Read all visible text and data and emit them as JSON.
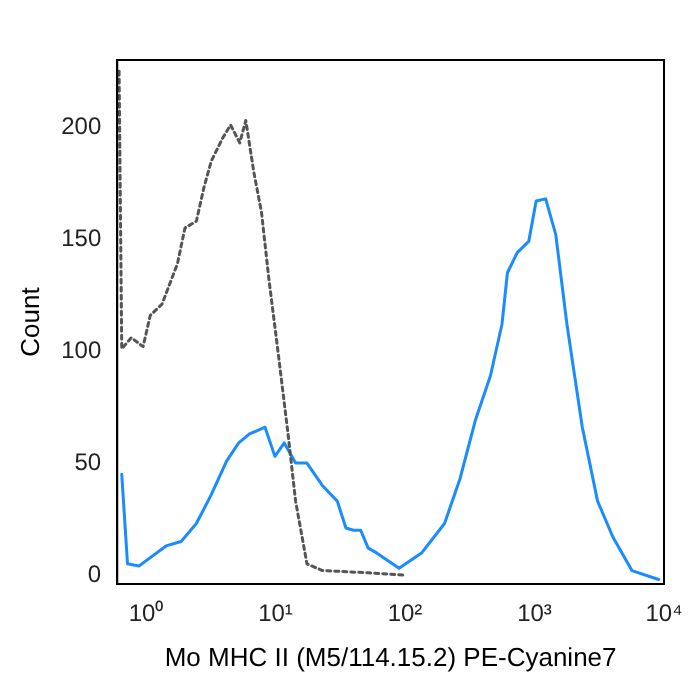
{
  "chart_data": {
    "type": "line",
    "xlabel": "Mo MHC II (M5/114.15.2) PE-Cyanine7",
    "ylabel": "Count",
    "log": "x",
    "xlim": [
      0.6,
      10000
    ],
    "xticks": [
      {
        "value": 1,
        "label": "10⁰"
      },
      {
        "value": 10,
        "label": "10¹"
      },
      {
        "value": 100,
        "label": "10²"
      },
      {
        "value": 1000,
        "label": "10³"
      },
      {
        "value": 10000,
        "label": "10⁴"
      }
    ],
    "ylim": [
      -4,
      230
    ],
    "yticks": [
      0,
      50,
      100,
      150,
      200
    ],
    "grid": false,
    "legend": false,
    "marker": "none",
    "series": [
      {
        "color": "#555555",
        "line_style": "dotted",
        "x": [
          0.62,
          0.65,
          0.77,
          0.95,
          1.08,
          1.33,
          1.75,
          2.0,
          2.45,
          2.8,
          3.2,
          3.9,
          4.5,
          5.3,
          5.9,
          6.8,
          7.8,
          8.9,
          10.5,
          12.5,
          14.3,
          17.5,
          23,
          52,
          96
        ],
        "values": [
          225,
          101,
          106,
          102,
          116,
          121,
          139,
          155,
          158,
          173,
          185,
          195,
          201,
          193,
          203,
          180,
          162,
          132,
          99,
          63,
          33,
          5,
          2,
          1,
          0
        ]
      },
      {
        "color": "#1a8cff",
        "line_style": "solid",
        "x": [
          0.65,
          0.72,
          0.88,
          1.43,
          1.87,
          2.45,
          3.2,
          4.2,
          5.2,
          6.3,
          8.3,
          9.9,
          11.7,
          14.3,
          17.5,
          23,
          30,
          35,
          40,
          45.5,
          52,
          60,
          90,
          135,
          202,
          266,
          349,
          457,
          561,
          618,
          736,
          903,
          1030,
          1220,
          1460,
          1780,
          2340,
          3070,
          4030,
          5650,
          9100
        ],
        "values": [
          45,
          5,
          4,
          13,
          15,
          23,
          36,
          51,
          59,
          63,
          66,
          53,
          59,
          50,
          50,
          40,
          33,
          21,
          20,
          20,
          12,
          10,
          3,
          10,
          23,
          43,
          69,
          89,
          112,
          135,
          144,
          149,
          167,
          168,
          152,
          112,
          66,
          33,
          17,
          2,
          -2
        ]
      }
    ]
  }
}
